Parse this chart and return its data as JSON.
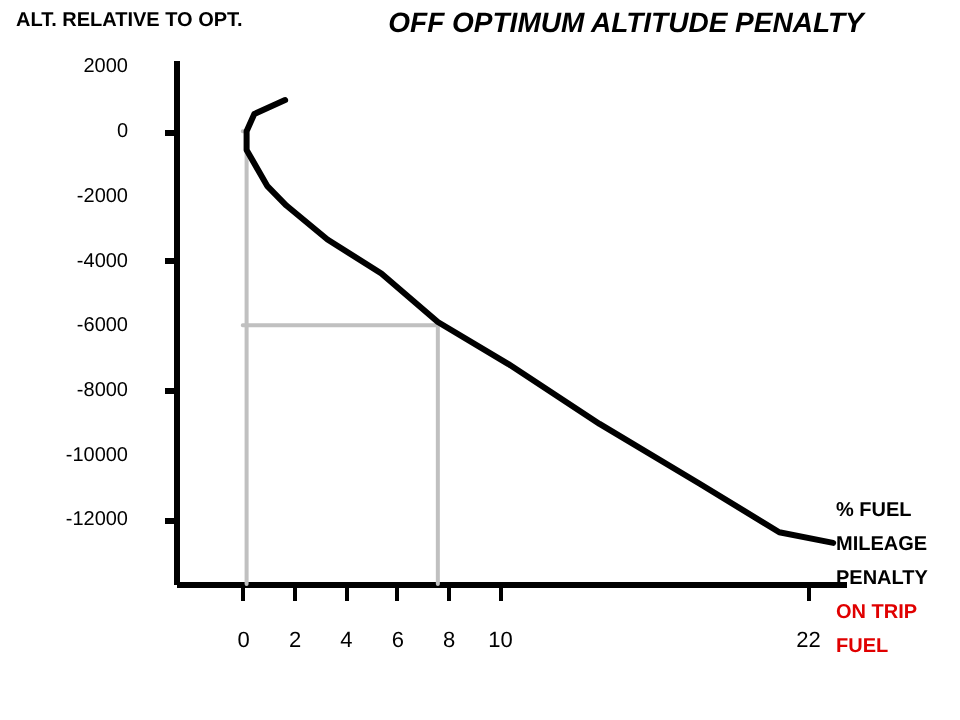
{
  "chart_data": {
    "type": "line",
    "title": "OFF OPTIMUM ALTITUDE PENALTY",
    "ylabel": "ALT. RELATIVE TO OPT.",
    "xlabel": "% FUEL MILEAGE PENALTY",
    "annotations": [
      "ON TRIP FUEL"
    ],
    "xlim": [
      -2.6,
      23.5
    ],
    "xticks": [
      0,
      2,
      4,
      6,
      8,
      10,
      22
    ],
    "ylim": [
      -14000,
      2200
    ],
    "yticks": [
      2000,
      0,
      -2000,
      -4000,
      -6000,
      -8000,
      -10000,
      -12000
    ],
    "grid": false,
    "marker": "none",
    "line_style": "solid",
    "series": [
      {
        "color": "#c0c0c0",
        "x": [
          0,
          0.15,
          0.15
        ],
        "values": [
          0,
          0,
          -14000
        ]
      },
      {
        "color": "#c0c0c0",
        "x": [
          0,
          7.6,
          7.6
        ],
        "values": [
          -6000,
          -6000,
          -14000
        ]
      },
      {
        "color": "#000000",
        "x": [
          1.65,
          0.45,
          0.15,
          0.15,
          0.95,
          1.7,
          3.3,
          5.4,
          7.6,
          10.35,
          13.9,
          17.8,
          20.9,
          23.0
        ],
        "values": [
          960,
          530,
          0,
          -580,
          -1690,
          -2300,
          -3350,
          -4400,
          -5900,
          -7200,
          -9050,
          -10900,
          -12400,
          -12730
        ]
      }
    ]
  }
}
